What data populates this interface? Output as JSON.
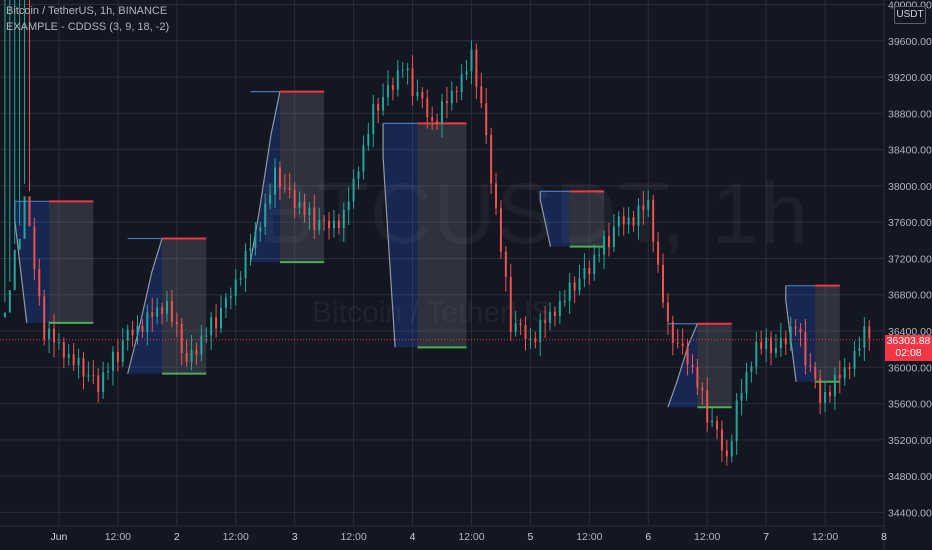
{
  "header": {
    "symbol_line": "Bitcoin / TetherUS, 1h, BINANCE",
    "indicator_line": "EXAMPLE - CDDSS (3, 9, 18, -2)"
  },
  "watermark": {
    "ticker": "BTCUSDT, 1h",
    "name": "Bitcoin / TetherUS"
  },
  "currency": "USDT",
  "current_price": {
    "value": "36303.88",
    "countdown": "02:08",
    "price": 36303.88
  },
  "colors": {
    "background": "#131722",
    "up": "#26a69a",
    "down": "#ef5350",
    "box_blue": "#2962ff",
    "box_gray": "#787b86",
    "resistance": "#f23645",
    "support": "#4caf50"
  },
  "chart_data": {
    "type": "candlestick",
    "title": "Bitcoin / TetherUS, 1h, BINANCE",
    "indicator": "EXAMPLE - CDDSS (3, 9, 18, -2)",
    "y_axis": {
      "ticks": [
        40000,
        39600,
        39200,
        38800,
        38400,
        38000,
        37600,
        37200,
        36800,
        36400,
        36000,
        35600,
        35200,
        34800,
        34400
      ],
      "labels": [
        "40000.00",
        "39600.00",
        "39200.00",
        "38800.00",
        "38400.00",
        "38000.00",
        "37600.00",
        "37200.00",
        "36800.00",
        "36400.00",
        "36000.00",
        "35600.00",
        "35200.00",
        "34800.00",
        "34400.00"
      ],
      "range": [
        34250,
        40050
      ]
    },
    "x_axis": {
      "labels": [
        "Jun",
        "12:00",
        "2",
        "12:00",
        "3",
        "12:00",
        "4",
        "12:00",
        "5",
        "12:00",
        "6",
        "12:00",
        "7",
        "12:00",
        "8"
      ],
      "day_flags": [
        true,
        false,
        true,
        false,
        true,
        false,
        true,
        false,
        true,
        false,
        true,
        false,
        true,
        false,
        true
      ],
      "range_hours": [
        -12,
        168
      ]
    },
    "price_path": [
      [
        -11,
        36550
      ],
      [
        -7,
        37850
      ],
      [
        -3,
        36400
      ],
      [
        4,
        36000
      ],
      [
        8,
        35800
      ],
      [
        14,
        36350
      ],
      [
        22,
        36700
      ],
      [
        26,
        36050
      ],
      [
        34,
        36700
      ],
      [
        40,
        37450
      ],
      [
        44,
        38100
      ],
      [
        50,
        37700
      ],
      [
        54,
        37550
      ],
      [
        58,
        37650
      ],
      [
        64,
        38800
      ],
      [
        70,
        39300
      ],
      [
        76,
        38700
      ],
      [
        80,
        39000
      ],
      [
        84,
        39400
      ],
      [
        86,
        38900
      ],
      [
        90,
        37300
      ],
      [
        92,
        36500
      ],
      [
        96,
        36300
      ],
      [
        102,
        36700
      ],
      [
        108,
        37100
      ],
      [
        114,
        37600
      ],
      [
        117,
        37650
      ],
      [
        120,
        37800
      ],
      [
        124,
        36400
      ],
      [
        128,
        36100
      ],
      [
        132,
        35500
      ],
      [
        136,
        35000
      ],
      [
        138,
        35550
      ],
      [
        142,
        36250
      ],
      [
        146,
        36200
      ],
      [
        150,
        36450
      ],
      [
        155,
        35650
      ],
      [
        160,
        35950
      ],
      [
        164,
        36350
      ],
      [
        168,
        36450
      ]
    ],
    "candle_wiggle": [
      -120,
      90,
      -40,
      160,
      -180,
      60,
      110,
      -70,
      30,
      -150,
      140,
      -20,
      80,
      -110,
      50,
      -60,
      170,
      -90,
      20,
      100
    ],
    "boxes": [
      {
        "t0": -9,
        "t1": -2,
        "t2": 7,
        "resistance": 37830,
        "support": 36490,
        "trend": "down"
      },
      {
        "t0": 14,
        "t1": 21,
        "t2": 30,
        "resistance": 37420,
        "support": 35930,
        "trend": "up"
      },
      {
        "t0": 39,
        "t1": 45,
        "t2": 54,
        "resistance": 39040,
        "support": 37160,
        "trend": "up"
      },
      {
        "t0": 66,
        "t1": 73,
        "t2": 83,
        "resistance": 38690,
        "support": 36220,
        "trend": "down"
      },
      {
        "t0": 98,
        "t1": 104,
        "t2": 111,
        "resistance": 37940,
        "support": 37330,
        "trend": "down"
      },
      {
        "t0": 124,
        "t1": 130,
        "t2": 137,
        "resistance": 36480,
        "support": 35560,
        "trend": "up"
      },
      {
        "t0": 148,
        "t1": 154,
        "t2": 159,
        "resistance": 36900,
        "support": 35840,
        "trend": "down"
      }
    ]
  }
}
